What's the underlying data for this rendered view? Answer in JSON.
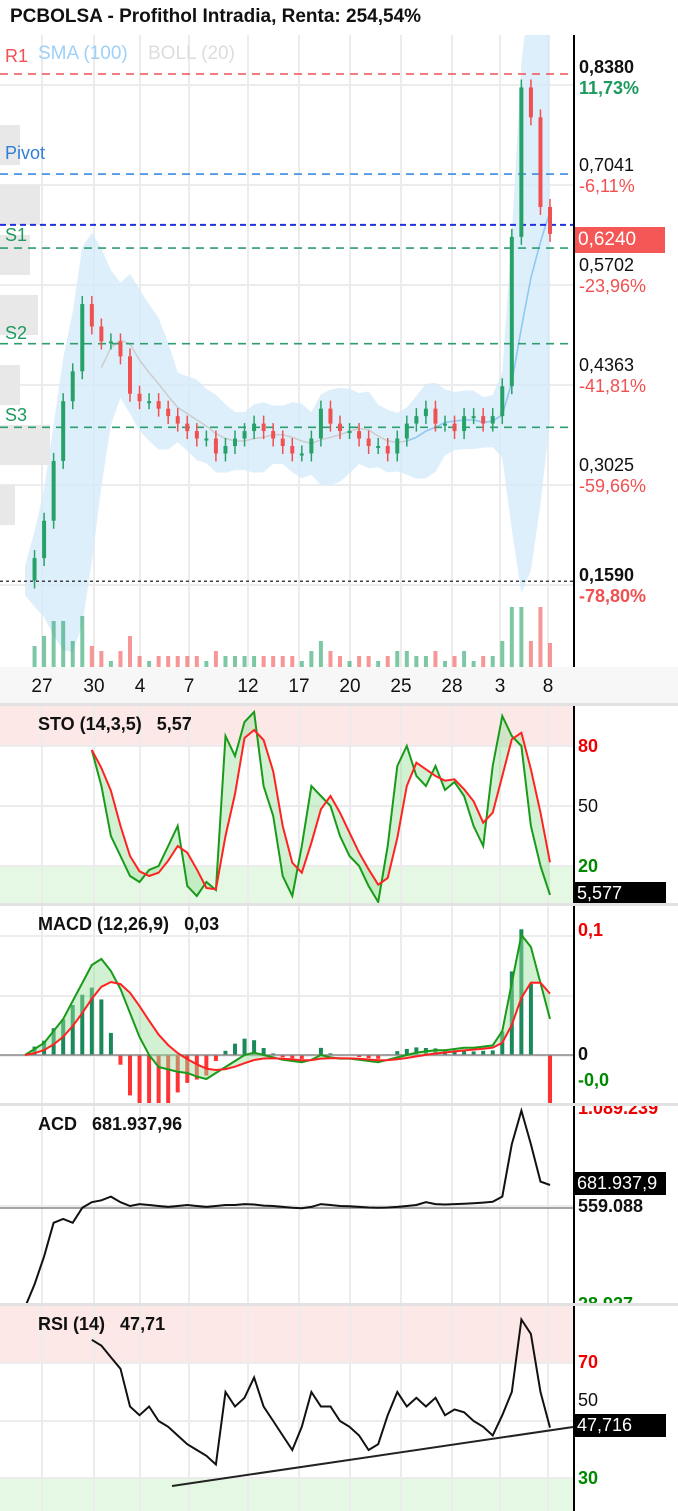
{
  "header": {
    "title": "PCBOLSA - Profithol Intradia, Renta: 254,54%"
  },
  "legend": {
    "r1": "R1",
    "sma": "SMA (100)",
    "boll": "BOLL (20)",
    "pivot": "Pivot",
    "s1": "S1",
    "s2": "S2",
    "s3": "S3"
  },
  "colors": {
    "up": "#26a269",
    "down": "#f05050",
    "r1": "#f05050",
    "pivot": "#3a8be0",
    "support": "#2e9e6e",
    "band": "#d6ebfb",
    "sma": "#8ec9f5"
  },
  "price_axis": [
    {
      "value": "0,8380",
      "pct": "11,73%",
      "pct_color": "#1e9a5e",
      "bold": true
    },
    {
      "value": "0,7041",
      "pct": "-6,11%",
      "pct_color": "#f05050"
    },
    {
      "value": "0,5702",
      "pct": "-23,96%",
      "pct_color": "#f05050"
    },
    {
      "value": "0,4363",
      "pct": "-41,81%",
      "pct_color": "#f05050"
    },
    {
      "value": "0,3025",
      "pct": "-59,66%",
      "pct_color": "#f05050"
    },
    {
      "value": "0,1590",
      "pct": "-78,80%",
      "pct_color": "#f05050",
      "bold": true
    }
  ],
  "current_price": "0,6240",
  "x_labels": [
    "27",
    "30",
    "4",
    "7",
    "12",
    "17",
    "20",
    "25",
    "28",
    "3",
    "8"
  ],
  "sto": {
    "label": "STO (14,3,5)",
    "value": "5,57",
    "tag": "5,577",
    "levels": [
      "80",
      "50",
      "20"
    ]
  },
  "macd": {
    "label": "MACD (12,26,9)",
    "value": "0,03",
    "levels": [
      "0,1",
      "0",
      "-0,0"
    ]
  },
  "acd": {
    "label": "ACD",
    "value": "681.937,96",
    "tag": "681.937,9",
    "levels": [
      "1.089.239",
      "559.088",
      "28.927"
    ]
  },
  "rsi": {
    "label": "RSI (14)",
    "value": "47,71",
    "tag": "47,716",
    "levels": [
      "70",
      "50",
      "30"
    ]
  },
  "chart_data": [
    {
      "type": "line",
      "title": "PCBOLSA - Profithol Intradia, Renta: 254,54%",
      "ylim": [
        0.12,
        0.9
      ],
      "levels": {
        "R1": 0.838,
        "Pivot": 0.7041,
        "S1": 0.605,
        "S2": 0.477,
        "S3": 0.365,
        "current": 0.624,
        "low": 0.159
      },
      "x_ticks": [
        "27",
        "30",
        "4",
        "7",
        "12",
        "17",
        "20",
        "25",
        "28",
        "3",
        "8"
      ],
      "close": [
        0.16,
        0.19,
        0.24,
        0.32,
        0.4,
        0.44,
        0.53,
        0.5,
        0.48,
        0.48,
        0.46,
        0.41,
        0.4,
        0.4,
        0.39,
        0.38,
        0.37,
        0.36,
        0.35,
        0.35,
        0.33,
        0.34,
        0.35,
        0.36,
        0.37,
        0.36,
        0.35,
        0.34,
        0.33,
        0.33,
        0.35,
        0.39,
        0.37,
        0.36,
        0.36,
        0.35,
        0.34,
        0.34,
        0.33,
        0.35,
        0.37,
        0.38,
        0.39,
        0.37,
        0.37,
        0.36,
        0.38,
        0.38,
        0.37,
        0.38,
        0.42,
        0.62,
        0.82,
        0.78,
        0.66,
        0.624
      ]
    },
    {
      "type": "line",
      "title": "STO (14,3,5)",
      "ylim": [
        0,
        100
      ],
      "start": 7,
      "k": [
        78,
        60,
        35,
        25,
        15,
        12,
        18,
        20,
        30,
        40,
        10,
        5,
        12,
        8,
        85,
        75,
        92,
        97,
        60,
        45,
        15,
        5,
        30,
        60,
        55,
        50,
        35,
        25,
        20,
        10,
        2,
        30,
        70,
        80,
        65,
        60,
        70,
        58,
        62,
        55,
        40,
        30,
        70,
        95,
        85,
        80,
        40,
        20,
        5.57
      ]
    },
    {
      "type": "line",
      "title": "MACD (12,26,9)",
      "ylim": [
        -0.025,
        0.11
      ],
      "macd": [
        0,
        0.005,
        0.01,
        0.02,
        0.03,
        0.045,
        0.06,
        0.075,
        0.08,
        0.07,
        0.055,
        0.035,
        0.015,
        0,
        -0.01,
        -0.012,
        -0.014,
        -0.015,
        -0.018,
        -0.02,
        -0.015,
        -0.01,
        -0.005,
        0,
        0.002,
        0,
        -0.002,
        -0.004,
        -0.005,
        -0.006,
        -0.004,
        0,
        -0.002,
        -0.003,
        -0.003,
        -0.004,
        -0.005,
        -0.006,
        -0.004,
        -0.002,
        0,
        0.002,
        0.003,
        0.004,
        0.004,
        0.005,
        0.006,
        0.006,
        0.007,
        0.008,
        0.02,
        0.06,
        0.1,
        0.09,
        0.06,
        0.03
      ]
    },
    {
      "type": "line",
      "title": "ACD",
      "unit": "thousands",
      "values": [
        28,
        150,
        300,
        480,
        500,
        480,
        560,
        590,
        600,
        620,
        590,
        570,
        580,
        575,
        570,
        565,
        570,
        575,
        570,
        565,
        570,
        575,
        575,
        580,
        578,
        572,
        570,
        565,
        560,
        558,
        565,
        580,
        575,
        570,
        568,
        565,
        562,
        560,
        562,
        565,
        570,
        575,
        590,
        580,
        578,
        580,
        582,
        585,
        588,
        592,
        620,
        900,
        1080,
        900,
        700,
        681.938
      ]
    },
    {
      "type": "line",
      "title": "RSI (14)",
      "ylim": [
        0,
        100
      ],
      "start": 7,
      "values": [
        78,
        76,
        72,
        68,
        55,
        52,
        55,
        50,
        48,
        45,
        42,
        40,
        38,
        35,
        60,
        55,
        58,
        65,
        55,
        50,
        45,
        40,
        48,
        60,
        55,
        55,
        50,
        48,
        45,
        40,
        42,
        52,
        60,
        55,
        58,
        55,
        58,
        52,
        54,
        53,
        50,
        48,
        45,
        52,
        60,
        85,
        80,
        60,
        47.716
      ]
    }
  ]
}
